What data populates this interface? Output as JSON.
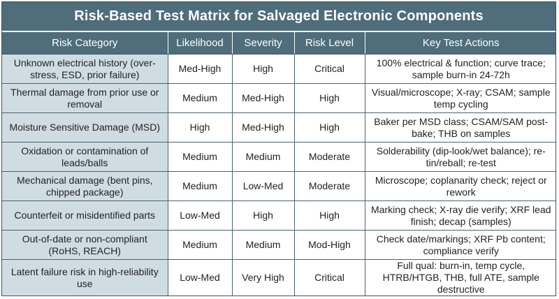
{
  "title": "Risk-Based Test Matrix for Salvaged Electronic Components",
  "columns": [
    "Risk Category",
    "Likelihood",
    "Severity",
    "Risk Level",
    "Key Test Actions"
  ],
  "rows": [
    [
      "Unknown electrical history (over-stress, ESD, prior failure)",
      "Med-High",
      "High",
      "Critical",
      "100% electrical & function; curve trace; sample burn-in 24-72h"
    ],
    [
      "Thermal damage from prior use or removal",
      "Medium",
      "Med-High",
      "High",
      "Visual/microscope; X-ray; CSAM; sample temp cycling"
    ],
    [
      "Moisture Sensitive Damage (MSD)",
      "High",
      "Med-High",
      "High",
      "Baker per MSD class; CSAM/SAM post-bake; THB on samples"
    ],
    [
      "Oxidation or contamination of leads/balls",
      "Medium",
      "Medium",
      "Moderate",
      "Solderability (dip-look/wet balance); re-tin/reball; re-test"
    ],
    [
      "Mechanical damage (bent pins, chipped package)",
      "Medium",
      "Low-Med",
      "Moderate",
      "Microscope; coplanarity check; reject or rework"
    ],
    [
      "Counterfeit or misidentified parts",
      "Low-Med",
      "High",
      "High",
      "Marking check; X-ray die verify; XRF lead finish; decap (samples)"
    ],
    [
      "Out-of-date or non-compliant (RoHS, REACH)",
      "Medium",
      "Medium",
      "Mod-High",
      "Check date/markings; XRF Pb content; compliance verify"
    ],
    [
      "Latent failure risk in high-reliability use",
      "Low-Med",
      "Very High",
      "Critical",
      "Full qual: burn-in, temp cycle, HTRB/HTGB, THB, full ATE, sample destructive"
    ]
  ],
  "colors": {
    "header_bg": "#4f6d7a",
    "first_col_bg": "#cfdde3",
    "border": "#4a6270"
  }
}
